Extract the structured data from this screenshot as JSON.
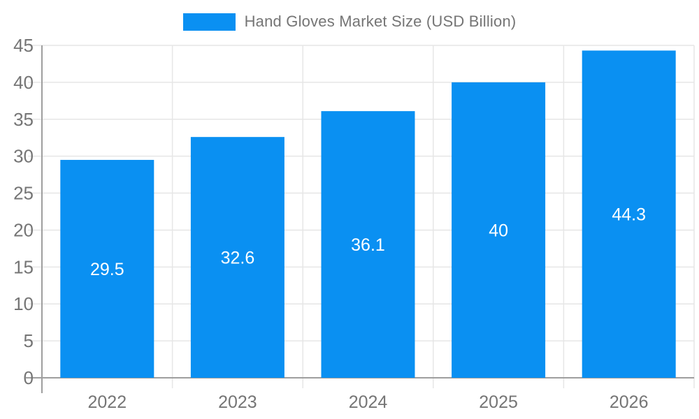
{
  "chart_data": {
    "type": "bar",
    "title": "Hand Gloves Market Size (USD Billion)",
    "categories": [
      "2022",
      "2023",
      "2024",
      "2025",
      "2026"
    ],
    "values": [
      29.5,
      32.6,
      36.1,
      40,
      44.3
    ],
    "value_labels": [
      "29.5",
      "32.6",
      "36.1",
      "40",
      "44.3"
    ],
    "series_name": "Hand Gloves Market Size (USD Billion)",
    "xlabel": "",
    "ylabel": "",
    "ylim": [
      0,
      45
    ],
    "ytick_step": 5,
    "ytick_labels": [
      "0",
      "5",
      "10",
      "15",
      "20",
      "25",
      "30",
      "35",
      "40",
      "45"
    ],
    "grid": true,
    "legend_position": "top",
    "colors": {
      "bar": "#0a90f2",
      "grid": "#e6e6e6",
      "axis": "#9e9e9e",
      "tick_label": "#757575",
      "value_label": "#ffffff",
      "background": "#ffffff"
    }
  }
}
